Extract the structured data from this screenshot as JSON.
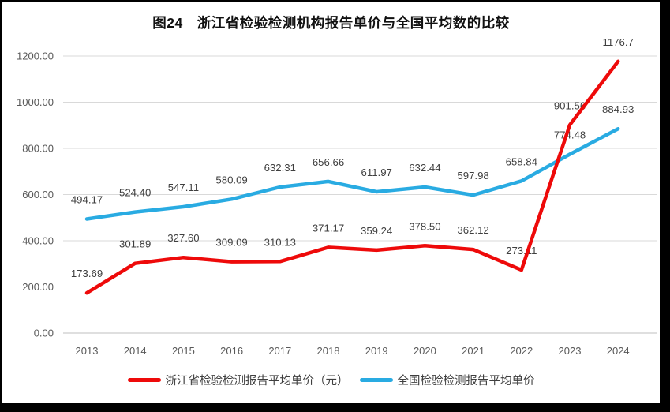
{
  "chart_data": {
    "type": "line",
    "title": "图24　浙江省检验检测机构报告单价与全国平均数的比较",
    "categories": [
      "2013",
      "2014",
      "2015",
      "2016",
      "2017",
      "2018",
      "2019",
      "2020",
      "2021",
      "2022",
      "2023",
      "2024"
    ],
    "series": [
      {
        "name": "浙江省检验检测报告平均单价（元）",
        "color": "#ee0a0a",
        "values": [
          173.69,
          301.89,
          327.6,
          309.09,
          310.13,
          371.17,
          359.24,
          378.5,
          362.12,
          273.11,
          901.56,
          1176.7
        ],
        "labels": [
          "173.69",
          "301.89",
          "327.60",
          "309.09",
          "310.13",
          "371.17",
          "359.24",
          "378.50",
          "362.12",
          "273.11",
          "901.56",
          "1176.7"
        ]
      },
      {
        "name": "全国检验检测报告平均单价",
        "color": "#29abe2",
        "values": [
          494.17,
          524.4,
          547.11,
          580.09,
          632.31,
          656.66,
          611.97,
          632.44,
          597.98,
          658.84,
          774.48,
          884.93
        ],
        "labels": [
          "494.17",
          "524.40",
          "547.11",
          "580.09",
          "632.31",
          "656.66",
          "611.97",
          "632.44",
          "597.98",
          "658.84",
          "774.48",
          "884.93"
        ]
      }
    ],
    "y_ticks": [
      "0.00",
      "200.00",
      "400.00",
      "600.00",
      "800.00",
      "1000.00",
      "1200.00"
    ],
    "ylim": [
      0,
      1200
    ],
    "grid": true,
    "legend_position": "bottom",
    "gridline_color": "#d9d9d9",
    "baseline_color": "#bfbfbf",
    "frame_color": "#000000"
  }
}
